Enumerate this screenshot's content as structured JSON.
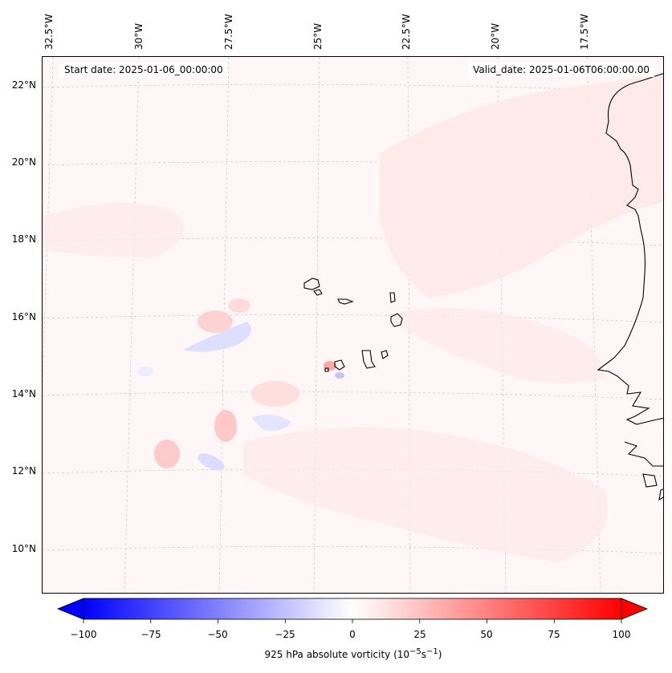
{
  "header": {
    "start_date": "Start date: 2025-01-06_00:00:00",
    "valid_date": "Valid_date: 2025-01-06T06:00:00.00"
  },
  "map": {
    "lon_labels": [
      "32.5°W",
      "30°W",
      "27.5°W",
      "25°W",
      "22.5°W",
      "20°W",
      "17.5°W"
    ],
    "lat_labels": [
      "22°N",
      "20°N",
      "18°N",
      "16°N",
      "14°N",
      "12°N",
      "10°N"
    ],
    "field_colors": {
      "background": "#fff7f7",
      "light_positive": "#ffe4e4",
      "medium_positive": "#ffcdcd",
      "light_negative": "#e6e6ff",
      "medium_negative": "#cfcfff",
      "coast": "#000000"
    }
  },
  "colorbar": {
    "ticks": [
      "−100",
      "−75",
      "−50",
      "−25",
      "0",
      "25",
      "50",
      "75",
      "100"
    ],
    "label_main": "925 hPa absolute vorticity (10",
    "label_exp1": "−5",
    "label_mid": "s",
    "label_exp2": "−1",
    "label_end": ")",
    "range": [
      -100,
      100
    ],
    "neg_color": "#0000ff",
    "pos_color": "#ff0000"
  }
}
